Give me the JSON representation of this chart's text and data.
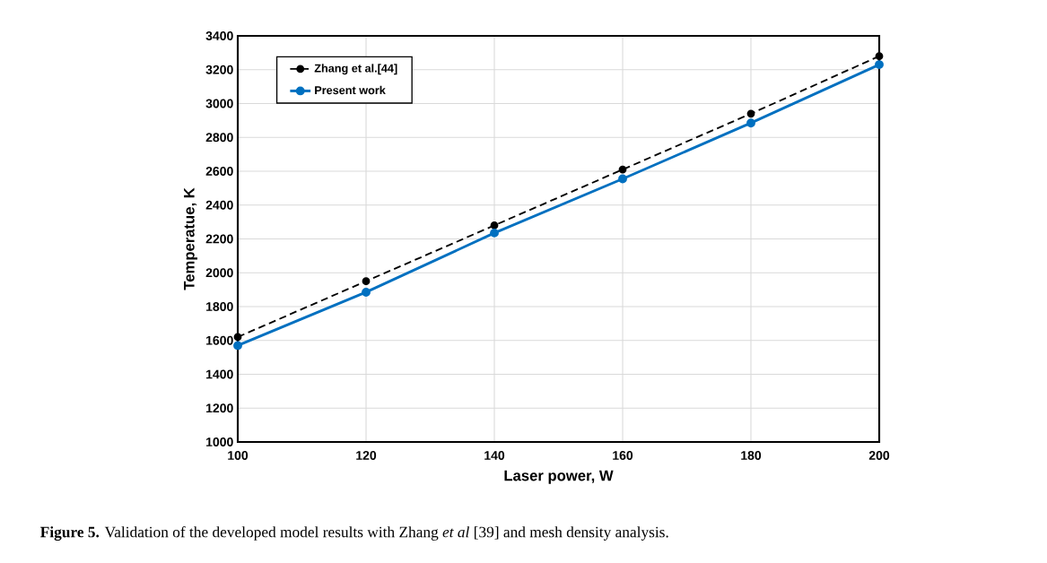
{
  "chart_data": {
    "type": "line",
    "xlabel": "Laser power, W",
    "ylabel": "Temperatue, K",
    "x": [
      100,
      120,
      140,
      160,
      180,
      200
    ],
    "series": [
      {
        "name": "Zhang et al.[44]",
        "color": "#000000",
        "line_style": "dashed",
        "values": [
          1620,
          1950,
          2280,
          2610,
          2940,
          3280
        ]
      },
      {
        "name": "Present work",
        "color": "#0070c0",
        "line_style": "solid",
        "values": [
          1570,
          1885,
          2235,
          2555,
          2885,
          3230
        ]
      }
    ],
    "marker": "circle",
    "xlim": [
      100,
      200
    ],
    "xticks": [
      100,
      120,
      140,
      160,
      180,
      200
    ],
    "ylim": [
      1000,
      3400
    ],
    "yticks": [
      1000,
      1200,
      1400,
      1600,
      1800,
      2000,
      2200,
      2400,
      2600,
      2800,
      3000,
      3200,
      3400
    ],
    "grid": true,
    "legend": "top left",
    "annotations": [
      "**Figure 5.** Validation of the developed model results with Zhang *et al* [39] and mesh density analysis."
    ]
  }
}
